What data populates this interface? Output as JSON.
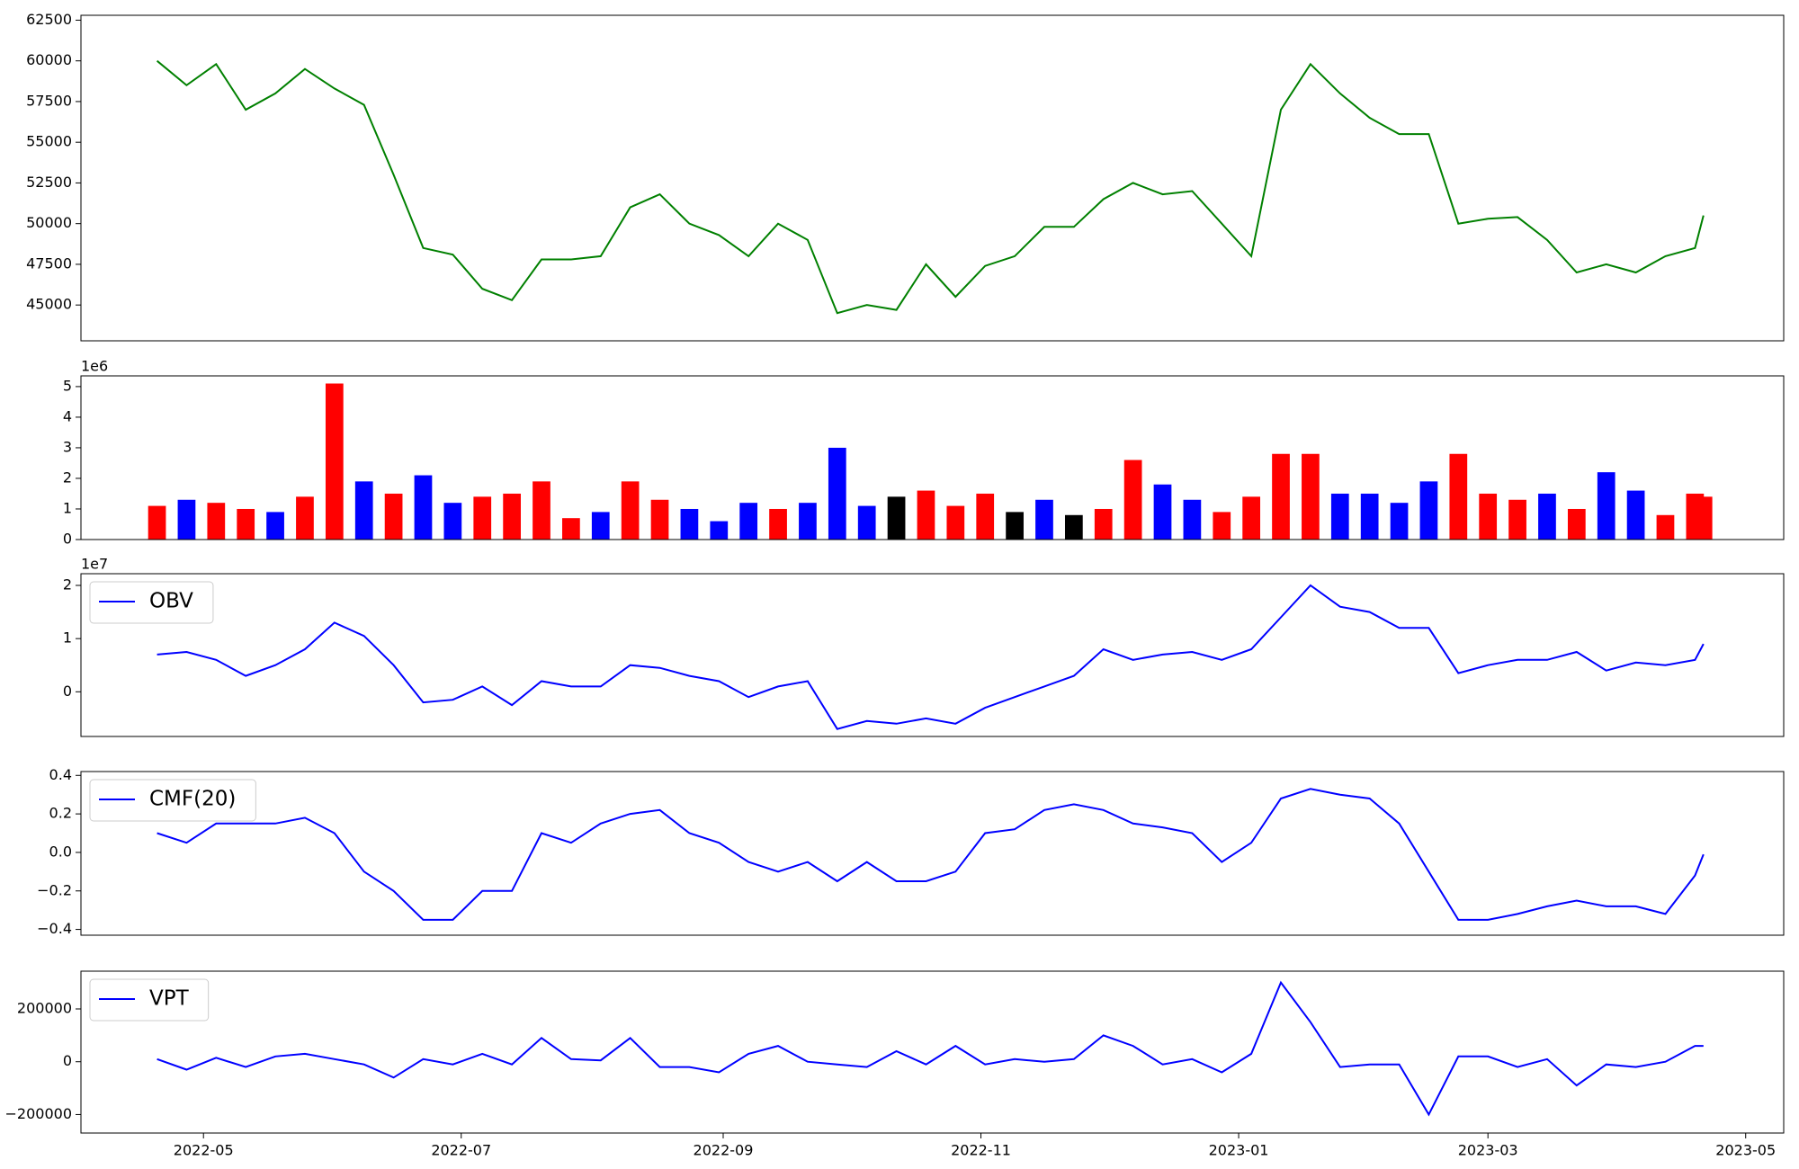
{
  "chart_data": {
    "type": "multi-panel",
    "x": [
      "2022-04-20",
      "2022-04-27",
      "2022-05-04",
      "2022-05-11",
      "2022-05-18",
      "2022-05-25",
      "2022-06-01",
      "2022-06-08",
      "2022-06-15",
      "2022-06-22",
      "2022-06-29",
      "2022-07-06",
      "2022-07-13",
      "2022-07-20",
      "2022-07-27",
      "2022-08-03",
      "2022-08-10",
      "2022-08-17",
      "2022-08-24",
      "2022-08-31",
      "2022-09-07",
      "2022-09-14",
      "2022-09-21",
      "2022-09-28",
      "2022-10-05",
      "2022-10-12",
      "2022-10-19",
      "2022-10-26",
      "2022-11-02",
      "2022-11-09",
      "2022-11-16",
      "2022-11-23",
      "2022-11-30",
      "2022-12-07",
      "2022-12-14",
      "2022-12-21",
      "2022-12-28",
      "2023-01-04",
      "2023-01-11",
      "2023-01-18",
      "2023-01-25",
      "2023-02-01",
      "2023-02-08",
      "2023-02-15",
      "2023-02-22",
      "2023-03-01",
      "2023-03-08",
      "2023-03-15",
      "2023-03-22",
      "2023-03-29",
      "2023-04-05",
      "2023-04-12",
      "2023-04-19",
      "2023-04-21"
    ],
    "xlim": [
      "2022-04-02",
      "2023-05-10"
    ],
    "xticks": [
      {
        "value": "2022-05-01",
        "label": "2022-05"
      },
      {
        "value": "2022-07-01",
        "label": "2022-07"
      },
      {
        "value": "2022-09-01",
        "label": "2022-09"
      },
      {
        "value": "2022-11-01",
        "label": "2022-11"
      },
      {
        "value": "2023-01-01",
        "label": "2023-01"
      },
      {
        "value": "2023-03-01",
        "label": "2023-03"
      },
      {
        "value": "2023-05-01",
        "label": "2023-05"
      }
    ],
    "panels": [
      {
        "type": "line",
        "ylim": [
          42800,
          62800
        ],
        "yticks": [
          45000,
          47500,
          50000,
          52500,
          55000,
          57500,
          60000,
          62500
        ],
        "series": [
          {
            "color": "#008000",
            "values": [
              60000,
              58500,
              59800,
              57000,
              58000,
              59500,
              58300,
              57300,
              53000,
              48500,
              48100,
              46000,
              45300,
              47800,
              47800,
              48000,
              51000,
              51800,
              50000,
              49300,
              48000,
              50000,
              49000,
              44500,
              45000,
              44700,
              47500,
              45500,
              47400,
              48000,
              49800,
              49800,
              51500,
              52500,
              51800,
              52000,
              50000,
              48000,
              57000,
              59800,
              58000,
              56500,
              55500,
              55500,
              50000,
              50300,
              50400,
              49000,
              47000,
              47500,
              47000,
              48000,
              48500,
              50500
            ]
          }
        ]
      },
      {
        "type": "bar",
        "ylim": [
          0,
          5.35
        ],
        "yticks": [
          0,
          1,
          2,
          3,
          4,
          5
        ],
        "offset_label": "1e6",
        "series": [
          {
            "values": [
              1.1,
              1.3,
              1.2,
              1.0,
              0.9,
              1.4,
              5.1,
              1.9,
              1.5,
              2.1,
              1.2,
              1.4,
              1.5,
              1.9,
              0.7,
              0.9,
              1.9,
              1.3,
              1.0,
              0.6,
              1.2,
              1.0,
              1.2,
              3.0,
              1.1,
              1.4,
              1.6,
              1.1,
              1.5,
              0.9,
              1.3,
              0.8,
              1.0,
              2.6,
              1.8,
              1.3,
              0.9,
              1.4,
              2.8,
              2.8,
              1.5,
              1.5,
              1.2,
              1.9,
              2.8,
              1.5,
              1.3,
              1.5,
              1.0,
              2.2,
              1.6,
              0.8,
              1.5,
              1.4
            ],
            "colors": [
              "#ff0000",
              "#0000ff",
              "#ff0000",
              "#ff0000",
              "#0000ff",
              "#ff0000",
              "#ff0000",
              "#0000ff",
              "#ff0000",
              "#0000ff",
              "#0000ff",
              "#ff0000",
              "#ff0000",
              "#ff0000",
              "#ff0000",
              "#0000ff",
              "#ff0000",
              "#ff0000",
              "#0000ff",
              "#0000ff",
              "#0000ff",
              "#ff0000",
              "#0000ff",
              "#0000ff",
              "#0000ff",
              "#000000",
              "#ff0000",
              "#ff0000",
              "#ff0000",
              "#000000",
              "#0000ff",
              "#000000",
              "#ff0000",
              "#ff0000",
              "#0000ff",
              "#0000ff",
              "#ff0000",
              "#ff0000",
              "#ff0000",
              "#ff0000",
              "#0000ff",
              "#0000ff",
              "#0000ff",
              "#0000ff",
              "#ff0000",
              "#ff0000",
              "#ff0000",
              "#0000ff",
              "#ff0000",
              "#0000ff",
              "#0000ff",
              "#ff0000",
              "#ff0000",
              "#ff0000"
            ]
          }
        ]
      },
      {
        "type": "line",
        "ylim": [
          -0.84,
          2.22
        ],
        "yticks": [
          0,
          1,
          2
        ],
        "offset_label": "1e7",
        "legend": "upper left",
        "series": [
          {
            "name": "OBV",
            "color": "#0000ff",
            "values": [
              0.7,
              0.75,
              0.6,
              0.3,
              0.5,
              0.8,
              1.3,
              1.05,
              0.5,
              -0.2,
              -0.15,
              0.1,
              -0.25,
              0.2,
              0.1,
              0.1,
              0.5,
              0.45,
              0.3,
              0.2,
              -0.1,
              0.1,
              0.2,
              -0.7,
              -0.55,
              -0.6,
              -0.5,
              -0.6,
              -0.3,
              -0.1,
              0.1,
              0.3,
              0.8,
              0.6,
              0.7,
              0.75,
              0.6,
              0.8,
              1.4,
              2.0,
              1.6,
              1.5,
              1.2,
              1.2,
              0.35,
              0.5,
              0.6,
              0.6,
              0.75,
              0.4,
              0.55,
              0.5,
              0.6,
              0.9
            ]
          }
        ]
      },
      {
        "type": "line",
        "ylim": [
          -0.43,
          0.42
        ],
        "yticks": [
          {
            "value": -0.4,
            "label": "−0.4"
          },
          {
            "value": -0.2,
            "label": "−0.2"
          },
          {
            "value": 0,
            "label": "0.0"
          },
          0.2,
          0.4
        ],
        "legend": "upper left",
        "series": [
          {
            "name": "CMF(20)",
            "color": "#0000ff",
            "values": [
              0.1,
              0.05,
              0.15,
              0.15,
              0.15,
              0.18,
              0.1,
              -0.1,
              -0.2,
              -0.35,
              -0.35,
              -0.2,
              -0.2,
              0.1,
              0.05,
              0.15,
              0.2,
              0.22,
              0.1,
              0.05,
              -0.05,
              -0.1,
              -0.05,
              -0.15,
              -0.05,
              -0.15,
              -0.15,
              -0.1,
              0.1,
              0.12,
              0.22,
              0.25,
              0.22,
              0.15,
              0.13,
              0.1,
              -0.05,
              0.05,
              0.28,
              0.33,
              0.3,
              0.28,
              0.15,
              -0.1,
              -0.35,
              -0.35,
              -0.32,
              -0.28,
              -0.25,
              -0.28,
              -0.28,
              -0.32,
              -0.12,
              -0.01
            ]
          }
        ]
      },
      {
        "type": "line",
        "ylim": [
          -270000,
          343000
        ],
        "yticks": [
          {
            "value": -200000,
            "label": "−200000"
          },
          0,
          200000
        ],
        "legend": "upper left",
        "series": [
          {
            "name": "VPT",
            "color": "#0000ff",
            "values": [
              10000,
              -30000,
              15000,
              -20000,
              20000,
              30000,
              10000,
              -10000,
              -60000,
              10000,
              -10000,
              30000,
              -10000,
              90000,
              10000,
              5000,
              90000,
              -20000,
              -20000,
              -40000,
              30000,
              60000,
              0,
              -10000,
              -20000,
              40000,
              -10000,
              60000,
              -10000,
              10000,
              0,
              10000,
              100000,
              60000,
              -10000,
              10000,
              -40000,
              30000,
              300000,
              150000,
              -20000,
              -10000,
              -10000,
              -200000,
              20000,
              20000,
              -20000,
              10000,
              -90000,
              -10000,
              -20000,
              0,
              60000,
              60000
            ]
          }
        ]
      }
    ]
  }
}
